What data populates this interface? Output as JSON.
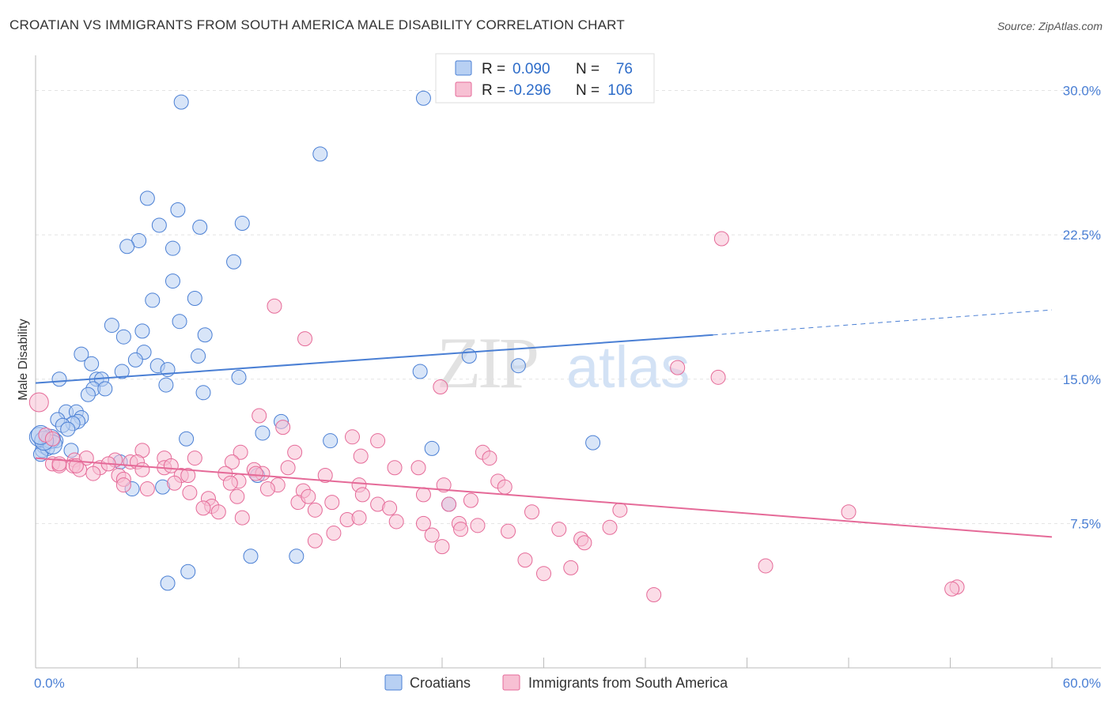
{
  "title": "CROATIAN VS IMMIGRANTS FROM SOUTH AMERICA MALE DISABILITY CORRELATION CHART",
  "source": "Source: ZipAtlas.com",
  "watermark": {
    "zip": "ZIP",
    "atlas": "atlas"
  },
  "legend_top": [
    {
      "r_label": "R =",
      "r_value": "0.090",
      "n_label": "N =",
      "n_value": "76",
      "color": "#4a7fd4"
    },
    {
      "r_label": "R =",
      "r_value": "-0.296",
      "n_label": "N =",
      "n_value": "106",
      "color": "#e56a98"
    }
  ],
  "chart_data": {
    "type": "scatter",
    "title": "CROATIAN VS IMMIGRANTS FROM SOUTH AMERICA MALE DISABILITY CORRELATION CHART",
    "xlabel": "",
    "ylabel": "Male Disability",
    "xlim": [
      0,
      60
    ],
    "ylim": [
      0,
      31.5
    ],
    "x_tick_labels": [
      "0.0%",
      "60.0%"
    ],
    "y_ticks": [
      7.5,
      15.0,
      22.5,
      30.0
    ],
    "y_tick_labels": [
      "7.5%",
      "15.0%",
      "22.5%",
      "30.0%"
    ],
    "grid": true,
    "series": [
      {
        "name": "Croatians",
        "color": "#4a7fd4",
        "fill": "#b8d0f3",
        "trend": {
          "x0": 0,
          "y0": 14.8,
          "x1": 40,
          "y1": 17.3,
          "dash_x1": 60,
          "dash_y1": 18.6
        },
        "points": [
          [
            8.6,
            29.4
          ],
          [
            22.9,
            29.6
          ],
          [
            16.8,
            26.7
          ],
          [
            6.6,
            24.4
          ],
          [
            8.4,
            23.8
          ],
          [
            7.3,
            23.0
          ],
          [
            9.7,
            22.9
          ],
          [
            12.2,
            23.1
          ],
          [
            6.1,
            22.2
          ],
          [
            5.4,
            21.9
          ],
          [
            8.1,
            21.8
          ],
          [
            11.7,
            21.1
          ],
          [
            8.1,
            20.1
          ],
          [
            6.9,
            19.1
          ],
          [
            9.4,
            19.2
          ],
          [
            8.5,
            18.0
          ],
          [
            4.5,
            17.8
          ],
          [
            6.3,
            17.5
          ],
          [
            5.2,
            17.2
          ],
          [
            10.0,
            17.3
          ],
          [
            2.7,
            16.3
          ],
          [
            6.4,
            16.4
          ],
          [
            9.6,
            16.2
          ],
          [
            25.6,
            16.2
          ],
          [
            5.9,
            16.0
          ],
          [
            3.3,
            15.8
          ],
          [
            7.2,
            15.7
          ],
          [
            7.8,
            15.5
          ],
          [
            28.5,
            15.7
          ],
          [
            5.1,
            15.4
          ],
          [
            22.7,
            15.4
          ],
          [
            1.4,
            15.0
          ],
          [
            3.6,
            15.0
          ],
          [
            3.9,
            15.0
          ],
          [
            12.0,
            15.1
          ],
          [
            7.7,
            14.7
          ],
          [
            3.4,
            14.5
          ],
          [
            4.1,
            14.5
          ],
          [
            9.9,
            14.3
          ],
          [
            3.1,
            14.2
          ],
          [
            1.8,
            13.3
          ],
          [
            2.4,
            13.3
          ],
          [
            2.7,
            13.0
          ],
          [
            1.3,
            12.9
          ],
          [
            2.5,
            12.8
          ],
          [
            2.2,
            12.7
          ],
          [
            1.6,
            12.6
          ],
          [
            1.9,
            12.4
          ],
          [
            13.4,
            12.2
          ],
          [
            8.9,
            11.9
          ],
          [
            14.5,
            12.8
          ],
          [
            17.4,
            11.8
          ],
          [
            32.9,
            11.7
          ],
          [
            0.8,
            11.9
          ],
          [
            1.2,
            11.8
          ],
          [
            0.6,
            11.7
          ],
          [
            0.5,
            11.5
          ],
          [
            0.4,
            11.3
          ],
          [
            0.7,
            11.4
          ],
          [
            2.1,
            11.3
          ],
          [
            23.4,
            11.4
          ],
          [
            0.3,
            11.1
          ],
          [
            5.0,
            10.7
          ],
          [
            13.1,
            10.0
          ],
          [
            7.5,
            9.4
          ],
          [
            5.7,
            9.3
          ],
          [
            24.4,
            8.5
          ],
          [
            12.7,
            5.8
          ],
          [
            15.4,
            5.8
          ],
          [
            9.0,
            5.0
          ],
          [
            7.8,
            4.4
          ],
          [
            0.2,
            12.0
          ],
          [
            0.9,
            11.9
          ],
          [
            1.0,
            11.6
          ],
          [
            0.5,
            11.8
          ],
          [
            0.3,
            12.1
          ]
        ]
      },
      {
        "name": "Immigrants from South America",
        "color": "#e56a98",
        "fill": "#f7c0d3",
        "trend": {
          "x0": 0,
          "y0": 10.9,
          "x1": 60,
          "y1": 6.8
        },
        "points": [
          [
            40.5,
            22.3
          ],
          [
            14.1,
            18.8
          ],
          [
            15.9,
            17.1
          ],
          [
            37.9,
            15.6
          ],
          [
            40.3,
            15.1
          ],
          [
            23.9,
            14.6
          ],
          [
            13.2,
            13.1
          ],
          [
            14.6,
            12.5
          ],
          [
            18.7,
            12.0
          ],
          [
            20.2,
            11.8
          ],
          [
            6.3,
            11.3
          ],
          [
            12.1,
            11.2
          ],
          [
            15.3,
            11.2
          ],
          [
            19.2,
            11.0
          ],
          [
            26.4,
            11.2
          ],
          [
            7.6,
            10.9
          ],
          [
            9.4,
            10.9
          ],
          [
            2.3,
            10.8
          ],
          [
            3.0,
            10.9
          ],
          [
            5.6,
            10.7
          ],
          [
            6.0,
            10.7
          ],
          [
            4.7,
            10.8
          ],
          [
            11.6,
            10.7
          ],
          [
            1.0,
            10.6
          ],
          [
            1.4,
            10.5
          ],
          [
            2.2,
            10.5
          ],
          [
            2.6,
            10.3
          ],
          [
            3.8,
            10.4
          ],
          [
            7.6,
            10.4
          ],
          [
            8.0,
            10.5
          ],
          [
            12.9,
            10.3
          ],
          [
            14.9,
            10.4
          ],
          [
            21.2,
            10.4
          ],
          [
            22.6,
            10.4
          ],
          [
            26.8,
            10.9
          ],
          [
            3.4,
            10.1
          ],
          [
            4.9,
            10.0
          ],
          [
            8.6,
            10.0
          ],
          [
            11.2,
            10.1
          ],
          [
            13.4,
            10.1
          ],
          [
            17.1,
            10.0
          ],
          [
            12.0,
            9.7
          ],
          [
            5.2,
            9.8
          ],
          [
            5.2,
            9.5
          ],
          [
            8.2,
            9.6
          ],
          [
            11.5,
            9.6
          ],
          [
            14.3,
            9.5
          ],
          [
            19.1,
            9.5
          ],
          [
            24.1,
            9.5
          ],
          [
            27.3,
            9.7
          ],
          [
            27.7,
            9.4
          ],
          [
            13.7,
            9.3
          ],
          [
            15.8,
            9.2
          ],
          [
            19.3,
            9.0
          ],
          [
            22.9,
            9.0
          ],
          [
            6.6,
            9.3
          ],
          [
            9.1,
            9.1
          ],
          [
            10.2,
            8.8
          ],
          [
            11.9,
            8.9
          ],
          [
            15.5,
            8.6
          ],
          [
            16.1,
            8.9
          ],
          [
            17.5,
            8.6
          ],
          [
            20.2,
            8.5
          ],
          [
            24.4,
            8.5
          ],
          [
            25.7,
            8.7
          ],
          [
            10.4,
            8.4
          ],
          [
            10.8,
            8.1
          ],
          [
            9.9,
            8.3
          ],
          [
            16.5,
            8.2
          ],
          [
            20.9,
            8.3
          ],
          [
            29.3,
            8.1
          ],
          [
            34.5,
            8.2
          ],
          [
            48.0,
            8.1
          ],
          [
            12.2,
            7.8
          ],
          [
            18.4,
            7.7
          ],
          [
            19.1,
            7.8
          ],
          [
            21.3,
            7.6
          ],
          [
            22.9,
            7.5
          ],
          [
            25.0,
            7.5
          ],
          [
            26.1,
            7.4
          ],
          [
            30.9,
            7.2
          ],
          [
            33.9,
            7.3
          ],
          [
            17.6,
            7.0
          ],
          [
            23.4,
            6.9
          ],
          [
            25.1,
            7.2
          ],
          [
            27.9,
            7.1
          ],
          [
            16.5,
            6.6
          ],
          [
            32.2,
            6.7
          ],
          [
            32.4,
            6.5
          ],
          [
            24.0,
            6.3
          ],
          [
            28.9,
            5.6
          ],
          [
            43.1,
            5.3
          ],
          [
            31.6,
            5.2
          ],
          [
            30.0,
            4.9
          ],
          [
            36.5,
            3.8
          ],
          [
            54.4,
            4.2
          ],
          [
            54.1,
            4.1
          ],
          [
            0.2,
            13.8
          ],
          [
            0.6,
            12.1
          ],
          [
            1.0,
            11.9
          ],
          [
            1.4,
            10.6
          ],
          [
            2.4,
            10.5
          ],
          [
            4.3,
            10.6
          ],
          [
            6.3,
            10.3
          ],
          [
            9.0,
            10.0
          ],
          [
            13.0,
            10.1
          ]
        ]
      }
    ]
  },
  "legend_bottom": [
    {
      "label": "Croatians",
      "color": "#4a7fd4",
      "fill": "#b8d0f3"
    },
    {
      "label": "Immigrants from South America",
      "color": "#e56a98",
      "fill": "#f7c0d3"
    }
  ]
}
